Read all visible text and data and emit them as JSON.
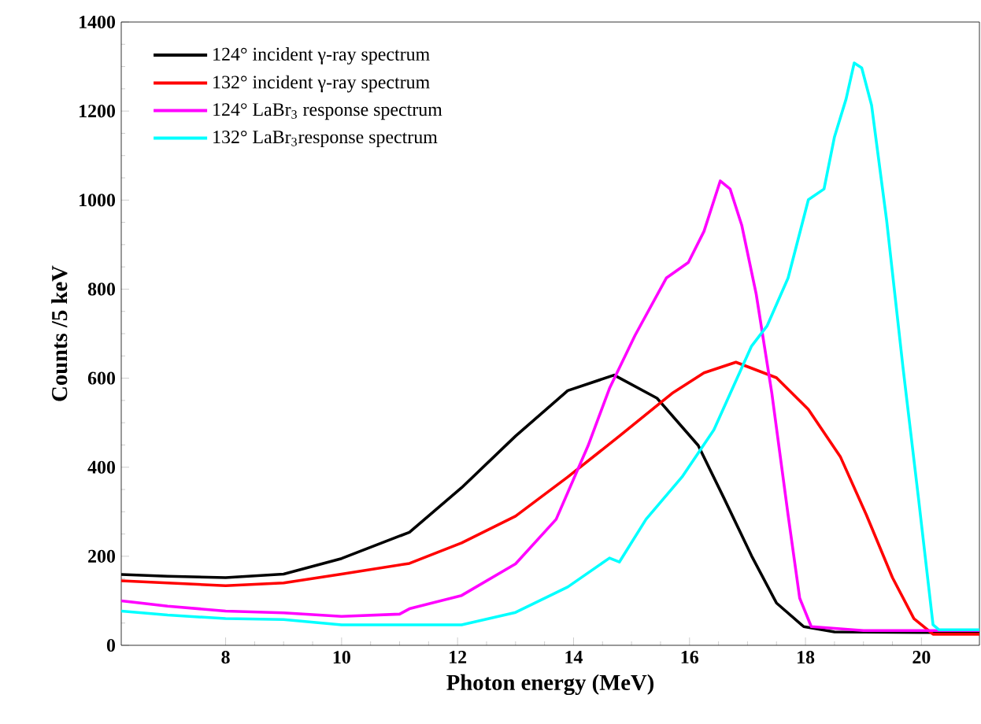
{
  "chart_data": {
    "type": "line",
    "xlabel": "Photon energy (MeV)",
    "ylabel": "Counts /5 keV",
    "xlim": [
      6.2,
      21
    ],
    "ylim": [
      0,
      1400
    ],
    "xticks": [
      8,
      10,
      12,
      14,
      16,
      18,
      20
    ],
    "yticks": [
      0,
      200,
      400,
      600,
      800,
      1000,
      1200,
      1400
    ],
    "legend": "top left",
    "grid": false,
    "marker": "none",
    "line_style": "solid",
    "series": [
      {
        "name": "124° incident γ-ray spectrum",
        "color": "#000000",
        "x": [
          6.2,
          7,
          8,
          9,
          10,
          11.17,
          12.07,
          13.0,
          13.9,
          14.7,
          15.44,
          16.15,
          16.6,
          17.07,
          17.5,
          17.97,
          18.5,
          20,
          21
        ],
        "values": [
          159,
          155,
          152,
          160,
          195,
          254,
          354,
          470,
          572,
          607,
          555,
          449,
          329,
          201,
          95,
          42,
          30,
          29,
          29
        ]
      },
      {
        "name": "132° incident γ-ray spectrum",
        "color": "#ff0000",
        "x": [
          6.2,
          7,
          8,
          9,
          10,
          11.17,
          12.07,
          13.0,
          13.9,
          14.79,
          15.7,
          16.25,
          16.8,
          17.5,
          18.05,
          18.6,
          19.05,
          19.5,
          19.87,
          20.2,
          21
        ],
        "values": [
          145,
          140,
          134,
          140,
          160,
          184,
          230,
          290,
          378,
          470,
          566,
          612,
          636,
          601,
          530,
          424,
          293,
          152,
          60,
          25,
          25
        ]
      },
      {
        "name": "124° LaBr$_{3}$ response spectrum",
        "color": "#ff00ff",
        "x": [
          6.2,
          7,
          8,
          9,
          10,
          11,
          11.17,
          12.07,
          13.0,
          13.7,
          14.25,
          14.62,
          15.06,
          15.6,
          15.98,
          16.25,
          16.53,
          16.7,
          16.9,
          17.15,
          17.42,
          17.7,
          17.9,
          18.1,
          19,
          21
        ],
        "values": [
          100,
          88,
          77,
          73,
          65,
          70,
          82,
          112,
          183,
          283,
          448,
          577,
          696,
          825,
          860,
          930,
          1043,
          1025,
          944,
          789,
          566,
          293,
          106,
          42,
          33,
          33
        ]
      },
      {
        "name": "132° LaBr$_{3}$response spectrum",
        "color": "#00ffff",
        "x": [
          6.2,
          7,
          8,
          9,
          10,
          11.17,
          12.07,
          13.0,
          13.9,
          14.62,
          14.79,
          15.25,
          15.87,
          16.42,
          17.07,
          17.34,
          17.7,
          18.05,
          18.32,
          18.5,
          18.7,
          18.84,
          18.97,
          19.14,
          19.4,
          19.68,
          19.95,
          20.2,
          20.3,
          21
        ],
        "values": [
          77,
          68,
          60,
          58,
          46,
          46,
          46,
          74,
          131,
          196,
          187,
          283,
          378,
          484,
          672,
          718,
          825,
          1001,
          1025,
          1142,
          1227,
          1308,
          1297,
          1213,
          954,
          626,
          329,
          46,
          35,
          35
        ]
      }
    ]
  }
}
